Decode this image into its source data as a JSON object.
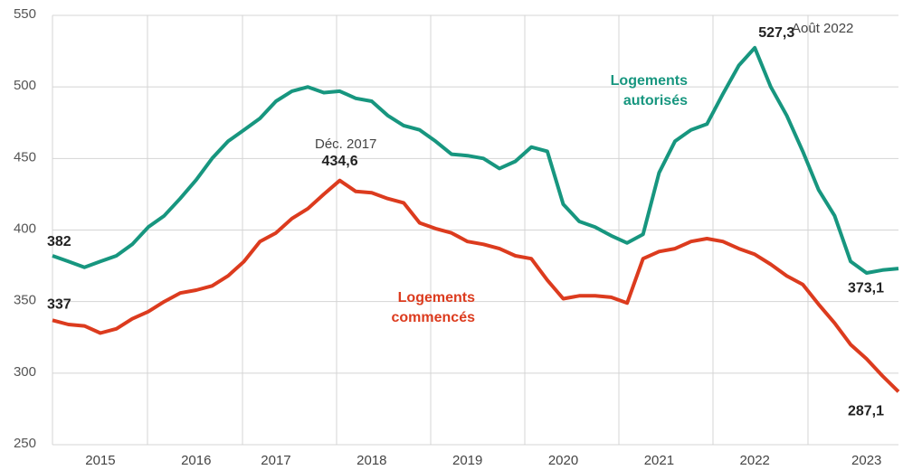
{
  "chart_data": {
    "type": "line",
    "categories": [
      null,
      null,
      null,
      "2015",
      null,
      null,
      null,
      null,
      null,
      "2016",
      null,
      null,
      null,
      null,
      "2017",
      null,
      null,
      null,
      null,
      null,
      "2018",
      null,
      null,
      null,
      null,
      null,
      "2019",
      null,
      null,
      null,
      null,
      null,
      "2020",
      null,
      null,
      null,
      null,
      null,
      "2021",
      null,
      null,
      null,
      null,
      null,
      "2022",
      null,
      null,
      null,
      null,
      null,
      null,
      "2023",
      null,
      null
    ],
    "series": [
      {
        "name": "Logements autorisés",
        "color": "#17967f",
        "values": [
          382,
          378,
          374,
          378,
          382,
          390,
          402,
          410,
          422,
          435,
          450,
          462,
          470,
          478,
          490,
          497,
          500,
          496,
          497,
          492,
          490,
          480,
          473,
          470,
          462,
          453,
          452,
          450,
          443,
          448,
          458,
          455,
          418,
          406,
          402,
          396,
          391,
          397,
          440,
          462,
          470,
          474,
          495,
          515,
          527.3,
          500,
          480,
          455,
          428,
          410,
          378,
          370,
          372,
          373.1
        ],
        "value_labels": [
          "382",
          null,
          null,
          null,
          null,
          null,
          null,
          null,
          null,
          null,
          null,
          null,
          null,
          null,
          null,
          null,
          null,
          null,
          null,
          null,
          null,
          null,
          null,
          null,
          null,
          null,
          null,
          null,
          null,
          null,
          null,
          null,
          null,
          null,
          null,
          null,
          null,
          null,
          null,
          null,
          null,
          null,
          null,
          null,
          "527,3",
          null,
          null,
          null,
          null,
          null,
          null,
          null,
          null,
          "373,1"
        ]
      },
      {
        "name": "Logements commencés",
        "color": "#dc3b1e",
        "values": [
          337,
          334,
          333,
          328,
          331,
          338,
          343,
          350,
          356,
          358,
          361,
          368,
          378,
          392,
          398,
          408,
          415,
          425,
          434.6,
          427,
          426,
          422,
          419,
          405,
          401,
          398,
          392,
          390,
          387,
          382,
          380,
          365,
          352,
          354,
          354,
          353,
          349,
          380,
          385,
          387,
          392,
          394,
          392,
          387,
          383,
          376,
          368,
          362,
          348,
          335,
          320,
          310,
          298,
          287.1
        ],
        "value_labels": [
          "337",
          null,
          null,
          null,
          null,
          null,
          null,
          null,
          null,
          null,
          null,
          null,
          null,
          null,
          null,
          null,
          null,
          null,
          "434,6",
          null,
          null,
          null,
          null,
          null,
          null,
          null,
          null,
          null,
          null,
          null,
          null,
          null,
          null,
          null,
          null,
          null,
          null,
          null,
          null,
          null,
          null,
          null,
          null,
          null,
          null,
          null,
          null,
          null,
          null,
          null,
          null,
          null,
          null,
          "287,1"
        ]
      }
    ],
    "annotations": [
      "Déc. 2017",
      "Août 2022"
    ],
    "ylim": [
      250,
      550
    ],
    "yticks": [
      250,
      300,
      350,
      400,
      450,
      500,
      550
    ],
    "grid": true
  }
}
